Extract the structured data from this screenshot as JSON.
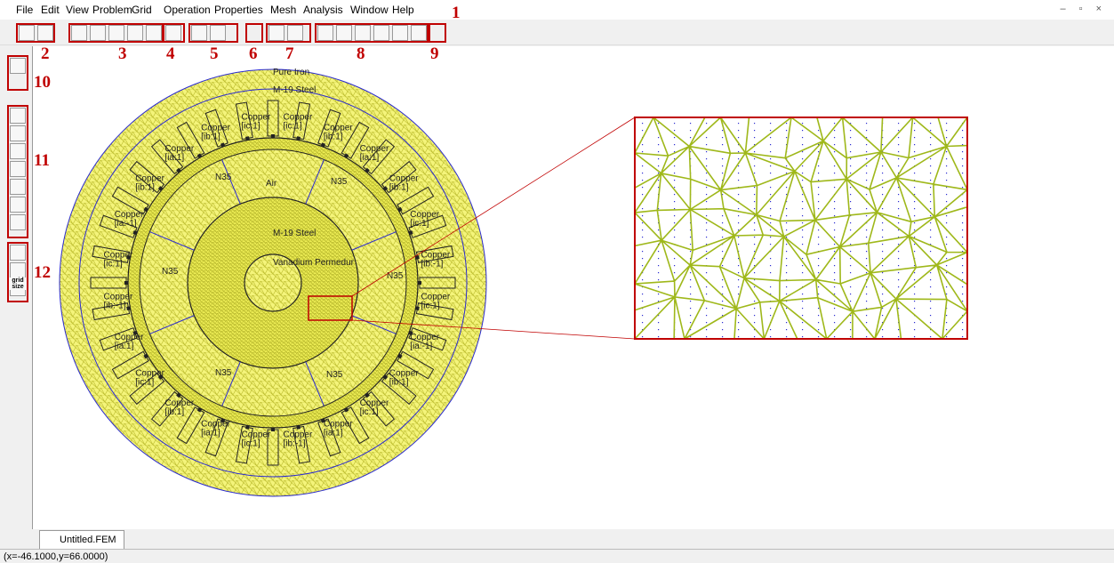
{
  "menu": [
    "File",
    "Edit",
    "View",
    "Problem",
    "Grid",
    "Operation",
    "Properties",
    "Mesh",
    "Analysis",
    "Window",
    "Help"
  ],
  "annotations": [
    "1",
    "2",
    "3",
    "4",
    "5",
    "6",
    "7",
    "8",
    "9",
    "10",
    "11",
    "12"
  ],
  "grid_size_button": "grid size",
  "model": {
    "materials": [
      "Pure Iron",
      "M-19 Steel",
      "Air",
      "M-19 Steel",
      "Vanadium Permedur"
    ],
    "magnets": [
      "N35",
      "N35",
      "N35",
      "N35",
      "N35",
      "N35"
    ],
    "coils": [
      {
        "name": "Copper",
        "circuit": "[ic:1]"
      },
      {
        "name": "Copper",
        "circuit": "[ib:1]"
      },
      {
        "name": "Copper",
        "circuit": "[ia:1]"
      },
      {
        "name": "Copper",
        "circuit": "[ib:1]"
      },
      {
        "name": "Copper",
        "circuit": "[ic:1]"
      },
      {
        "name": "Copper",
        "circuit": "[ib:-1]"
      },
      {
        "name": "Copper",
        "circuit": "[ic:1]"
      },
      {
        "name": "Copper",
        "circuit": "[ia:-1]"
      },
      {
        "name": "Copper",
        "circuit": "[ib:1]"
      },
      {
        "name": "Copper",
        "circuit": "[ic:1]"
      },
      {
        "name": "Copper",
        "circuit": "[ia:1]"
      },
      {
        "name": "Copper",
        "circuit": "[ib:-1]"
      },
      {
        "name": "Copper",
        "circuit": "[ic:1]"
      },
      {
        "name": "Copper",
        "circuit": "[ia:1]"
      },
      {
        "name": "Copper",
        "circuit": "[ib:1]"
      },
      {
        "name": "Copper",
        "circuit": "[ic:1]"
      },
      {
        "name": "Copper",
        "circuit": "[ia:1]"
      },
      {
        "name": "Copper",
        "circuit": "[ib:-1]"
      },
      {
        "name": "Copper",
        "circuit": "[ic:1]"
      },
      {
        "name": "Copper",
        "circuit": "[ia:-1]"
      },
      {
        "name": "Copper",
        "circuit": "[ib:1]"
      },
      {
        "name": "Copper",
        "circuit": "[ia:1]"
      },
      {
        "name": "Copper",
        "circuit": "[ib:1]"
      },
      {
        "name": "Copper",
        "circuit": "[ic:1]"
      }
    ]
  },
  "tab": "Untitled.FEM",
  "status": "(x=-46.1000,y=66.0000)"
}
